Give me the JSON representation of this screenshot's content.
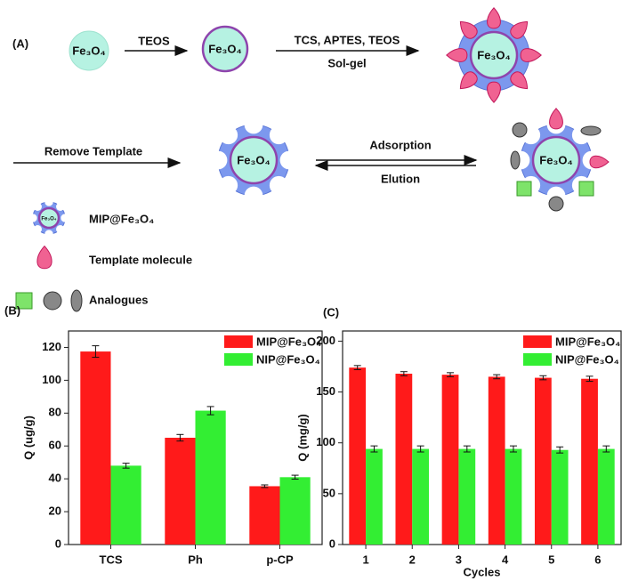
{
  "diagram": {
    "panel": "(A)",
    "steps": [
      "TEOS",
      "TCS, APTES, TEOS",
      "Sol-gel",
      "Remove Template",
      "Adsorption",
      "Elution"
    ],
    "particles": [
      "Fe₃O₄",
      "Fe₃O₄",
      "Fe₃O₄",
      "Fe₃O₄",
      "Fe₃O₄",
      "Fe₃O₄"
    ],
    "legend": [
      "MIP@Fe₃O₄",
      "Template molecule",
      "Analogues"
    ]
  },
  "chart_data": [
    {
      "type": "bar",
      "title": "(B)",
      "y_label": "Q (ug/g)",
      "categories": [
        "TCS",
        "Ph",
        "p-CP"
      ],
      "series": [
        {
          "name": "MIP@Fe₃O₄",
          "color": "#ff1a1a",
          "values": [
            117.5,
            65,
            35.5
          ],
          "errors": [
            3.5,
            2,
            0.8
          ]
        },
        {
          "name": "NIP@Fe₃O₄",
          "color": "#33ee33",
          "values": [
            48,
            81.5,
            41
          ],
          "errors": [
            1.5,
            2.5,
            1.2
          ]
        }
      ],
      "ylim": [
        0,
        130
      ],
      "yticks": [
        0,
        20,
        40,
        60,
        80,
        100,
        120
      ],
      "legend": "upper right"
    },
    {
      "type": "bar",
      "title": "(C)",
      "y_label": "Q (mg/g)",
      "x_label": "Cycles",
      "categories": [
        "1",
        "2",
        "3",
        "4",
        "5",
        "6"
      ],
      "series": [
        {
          "name": "MIP@Fe₃O₄",
          "color": "#ff1a1a",
          "values": [
            174,
            168,
            167,
            165,
            164,
            163
          ],
          "errors": [
            2,
            2,
            2,
            2,
            2,
            2.5
          ]
        },
        {
          "name": "NIP@Fe₃O₄",
          "color": "#33ee33",
          "values": [
            94,
            94,
            94,
            94,
            93,
            94
          ],
          "errors": [
            3,
            3,
            3,
            3,
            3,
            3
          ]
        }
      ],
      "ylim": [
        0,
        210
      ],
      "yticks": [
        0,
        50,
        100,
        150,
        200
      ],
      "legend": "upper right"
    }
  ]
}
